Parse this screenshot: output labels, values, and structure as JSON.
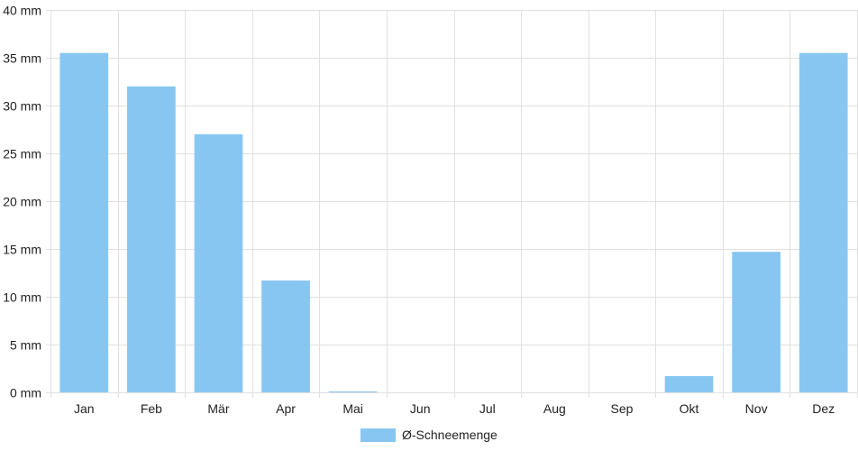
{
  "chart_data": {
    "type": "bar",
    "categories": [
      "Jan",
      "Feb",
      "Mär",
      "Apr",
      "Mai",
      "Jun",
      "Jul",
      "Aug",
      "Sep",
      "Okt",
      "Nov",
      "Dez"
    ],
    "series": [
      {
        "name": "Ø-Schneemenge",
        "values": [
          35.5,
          32.0,
          27.0,
          11.7,
          0.1,
          0,
          0,
          0,
          0,
          1.7,
          14.7,
          35.5
        ],
        "color": "#88c6f2"
      }
    ],
    "ylim": [
      0,
      40
    ],
    "yticks": [
      0,
      5,
      10,
      15,
      20,
      25,
      30,
      35,
      40
    ],
    "y_tick_labels": [
      "0 mm",
      "5 mm",
      "10 mm",
      "15 mm",
      "20 mm",
      "25 mm",
      "30 mm",
      "35 mm",
      "40 mm"
    ],
    "grid": true,
    "legend_position": "bottom"
  },
  "legend": {
    "label": "Ø-Schneemenge",
    "color": "#88c6f2"
  }
}
